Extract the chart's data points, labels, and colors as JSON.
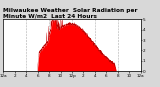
{
  "title": "Milwaukee Weather  Solar Radiation per Minute W/m2  Last 24 Hours",
  "bg_color": "#d8d8d8",
  "plot_bg": "#ffffff",
  "fill_color": "#ff0000",
  "line_color": "#bb0000",
  "grid_color": "#888888",
  "ylim": [
    0,
    550
  ],
  "num_points": 1440,
  "title_fontsize": 4.2,
  "tick_fontsize": 3.0,
  "ytick_labels": [
    "0",
    "1",
    "2",
    "3",
    "4",
    "5"
  ],
  "ytick_vals": [
    0,
    110,
    220,
    330,
    440,
    550
  ],
  "xtick_labels": [
    "12a",
    "2",
    "4",
    "6",
    "8",
    "10",
    "12p",
    "2",
    "4",
    "6",
    "8",
    "10",
    "12a"
  ],
  "grid_x_positions": [
    240,
    480,
    720,
    960,
    1200
  ]
}
